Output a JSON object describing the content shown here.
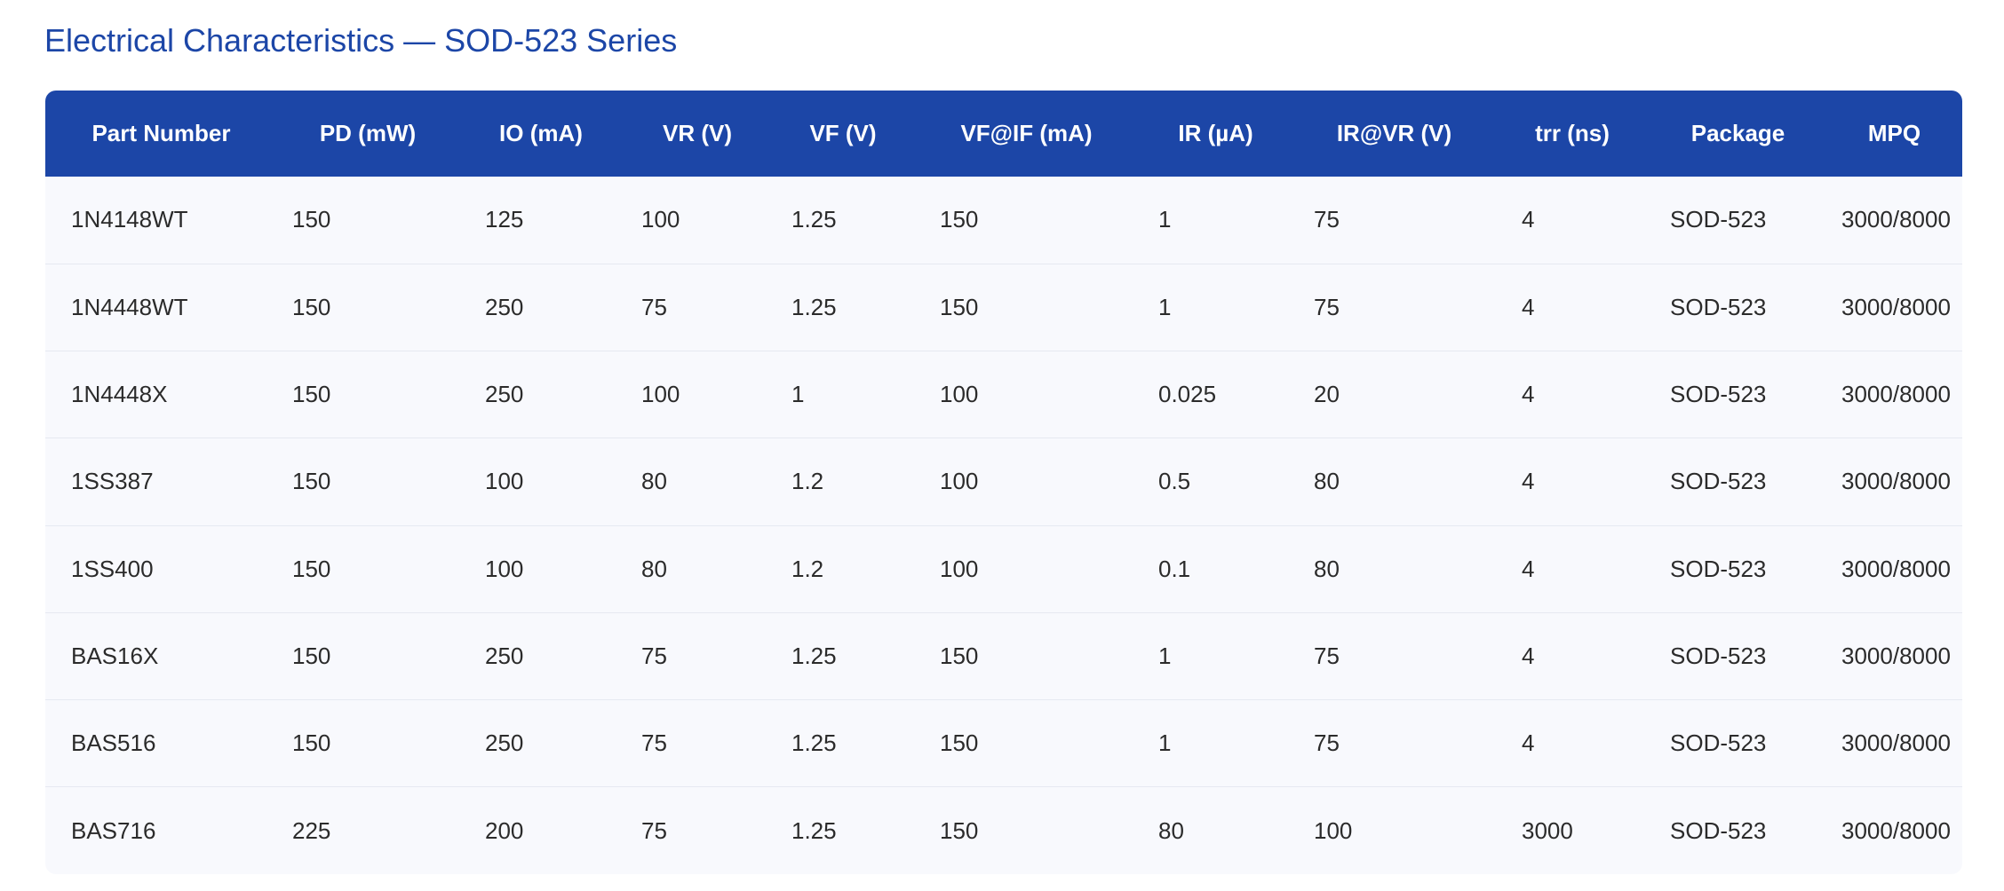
{
  "title": "Electrical Characteristics — SOD-523 Series",
  "table": {
    "headers": [
      "Part Number",
      "PD (mW)",
      "IO (mA)",
      "VR (V)",
      "VF (V)",
      "VF@IF (mA)",
      "IR (µA)",
      "IR@VR (V)",
      "trr (ns)",
      "Package",
      "MPQ"
    ],
    "rows": [
      [
        "1N4148WT",
        "150",
        "125",
        "100",
        "1.25",
        "150",
        "1",
        "75",
        "4",
        "SOD-523",
        "3000/8000"
      ],
      [
        "1N4448WT",
        "150",
        "250",
        "75",
        "1.25",
        "150",
        "1",
        "75",
        "4",
        "SOD-523",
        "3000/8000"
      ],
      [
        "1N4448X",
        "150",
        "250",
        "100",
        "1",
        "100",
        "0.025",
        "20",
        "4",
        "SOD-523",
        "3000/8000"
      ],
      [
        "1SS387",
        "150",
        "100",
        "80",
        "1.2",
        "100",
        "0.5",
        "80",
        "4",
        "SOD-523",
        "3000/8000"
      ],
      [
        "1SS400",
        "150",
        "100",
        "80",
        "1.2",
        "100",
        "0.1",
        "80",
        "4",
        "SOD-523",
        "3000/8000"
      ],
      [
        "BAS16X",
        "150",
        "250",
        "75",
        "1.25",
        "150",
        "1",
        "75",
        "4",
        "SOD-523",
        "3000/8000"
      ],
      [
        "BAS516",
        "150",
        "250",
        "75",
        "1.25",
        "150",
        "1",
        "75",
        "4",
        "SOD-523",
        "3000/8000"
      ],
      [
        "BAS716",
        "225",
        "200",
        "75",
        "1.25",
        "150",
        "80",
        "100",
        "3000",
        "SOD-523",
        "3000/8000"
      ]
    ]
  }
}
